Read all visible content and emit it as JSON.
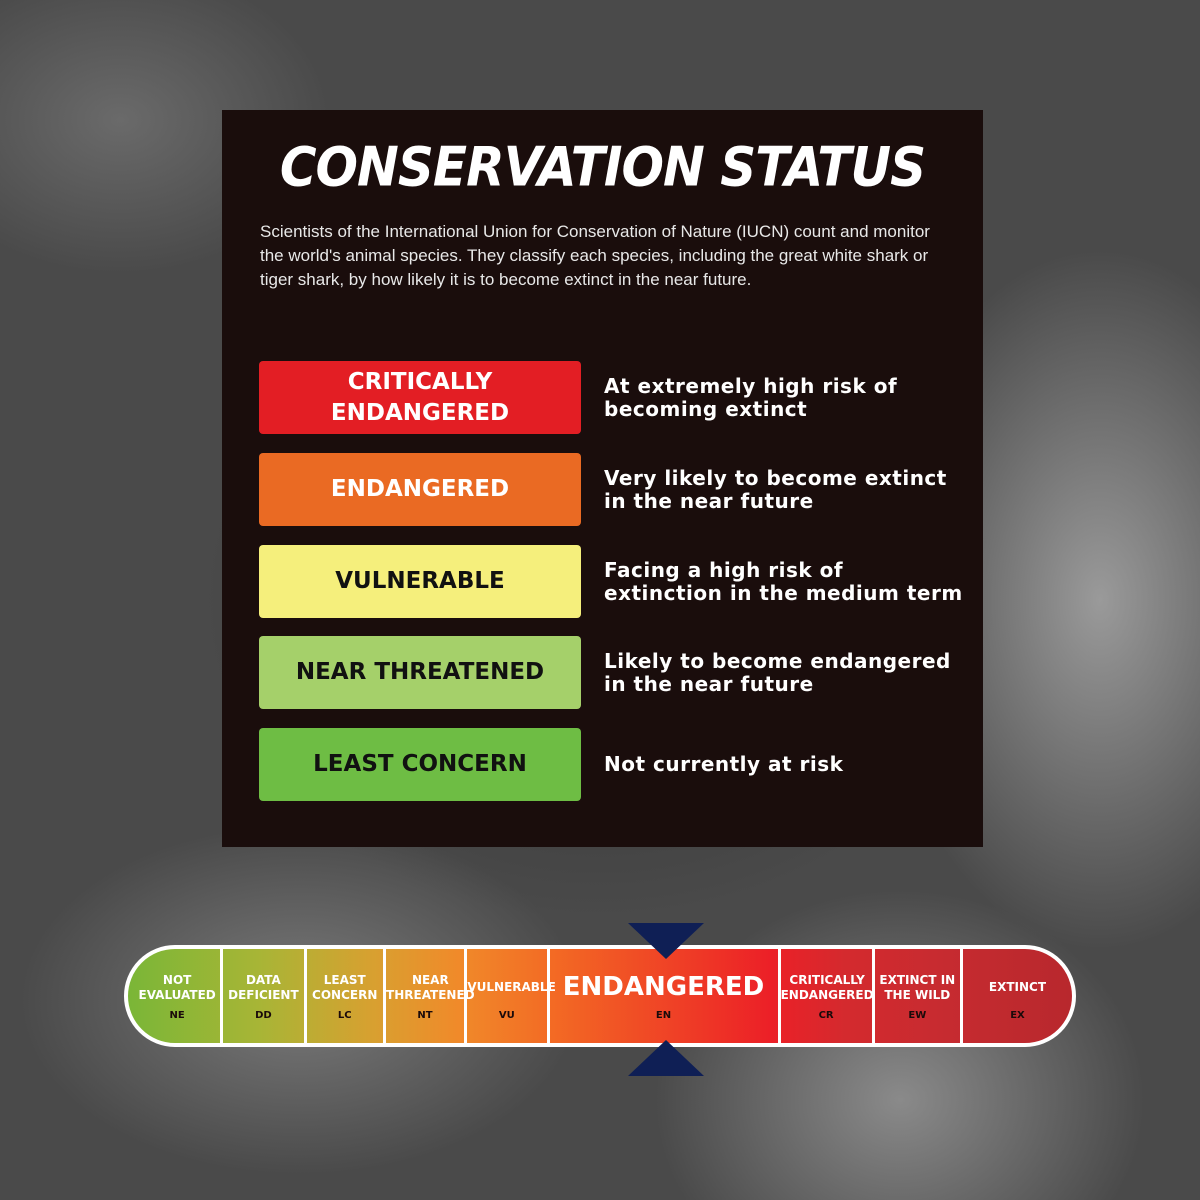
{
  "title": "CONSERVATION STATUS",
  "intro": "Scientists of the International Union for Conservation of Nature (IUCN) count and monitor the world's animal species. They classify each species, including the great white shark or tiger shark, by how likely it is to become extinct in the near future.",
  "categories": [
    {
      "label": "CRITICALLY ENDANGERED",
      "description": "At extremely high risk of becoming extinct",
      "color": "#e31e24",
      "text_color": "#ffffff"
    },
    {
      "label": "ENDANGERED",
      "description": "Very likely to become extinct in the near future",
      "color": "#ea6a23",
      "text_color": "#ffffff"
    },
    {
      "label": "VULNERABLE",
      "description": "Facing a high risk of extinction in the medium term",
      "color": "#f5ef7c",
      "text_color": "#111111"
    },
    {
      "label": "NEAR THREATENED",
      "description": "Likely to become endangered in the near future",
      "color": "#a5d06a",
      "text_color": "#111111"
    },
    {
      "label": "LEAST CONCERN",
      "description": "Not currently at risk",
      "color": "#6ebd44",
      "text_color": "#111111"
    }
  ],
  "scale": {
    "highlighted": "EN",
    "pointer_color": "#0f1f55",
    "segments": [
      {
        "name": "NOT EVALUATED",
        "code": "NE"
      },
      {
        "name": "DATA DEFICIENT",
        "code": "DD"
      },
      {
        "name": "LEAST CONCERN",
        "code": "LC"
      },
      {
        "name": "NEAR THREATENED",
        "code": "NT"
      },
      {
        "name": "VULNERABLE",
        "code": "VU"
      },
      {
        "name": "ENDANGERED",
        "code": "EN"
      },
      {
        "name": "CRITICALLY ENDANGERED",
        "code": "CR"
      },
      {
        "name": "EXTINCT IN THE WILD",
        "code": "EW"
      },
      {
        "name": "EXTINCT",
        "code": "EX"
      }
    ]
  }
}
